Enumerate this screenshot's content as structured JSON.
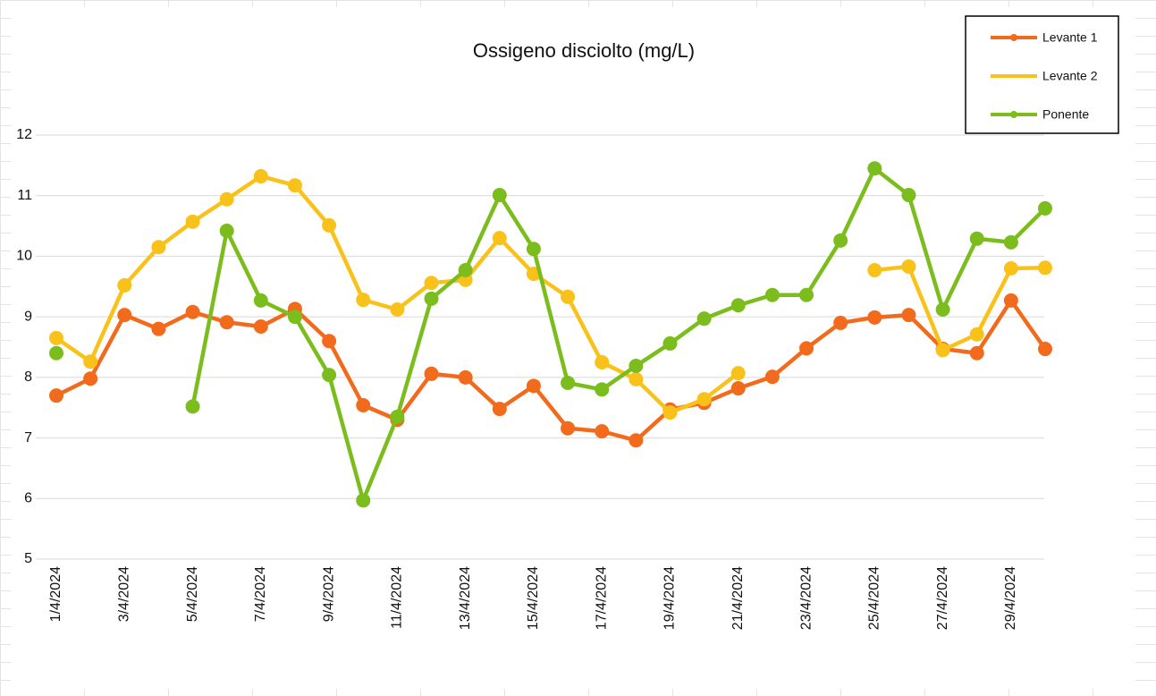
{
  "chart_data": {
    "type": "line",
    "title": "Ossigeno disciolto (mg/L)",
    "categories": [
      "1/4/2024",
      null,
      "3/4/2024",
      null,
      "5/4/2024",
      null,
      "7/4/2024",
      null,
      "9/4/2024",
      null,
      "11/4/2024",
      null,
      "13/4/2024",
      null,
      "15/4/2024",
      null,
      "17/4/2024",
      null,
      "19/4/2024",
      null,
      "21/4/2024",
      null,
      "23/4/2024",
      null,
      "25/4/2024",
      null,
      "27/4/2024",
      null,
      "29/4/2024",
      null
    ],
    "series": [
      {
        "name": "Levante 1",
        "color": "#f26b1d",
        "values": [
          7.7,
          7.98,
          9.03,
          8.8,
          9.08,
          8.91,
          8.84,
          9.13,
          8.6,
          7.54,
          7.3,
          8.06,
          8.0,
          7.48,
          7.86,
          7.16,
          7.11,
          6.96,
          7.47,
          7.58,
          7.82,
          8.01,
          8.48,
          8.9,
          8.99,
          9.03,
          8.47,
          8.4,
          9.27,
          8.47
        ]
      },
      {
        "name": "Levante 2",
        "color": "#f9c21b",
        "values": [
          8.65,
          8.26,
          9.52,
          10.15,
          10.57,
          10.94,
          11.32,
          11.17,
          10.51,
          9.28,
          9.12,
          9.56,
          9.61,
          10.3,
          9.71,
          9.33,
          8.25,
          7.97,
          7.42,
          7.64,
          8.07,
          null,
          null,
          null,
          9.77,
          9.83,
          8.45,
          8.71,
          9.8,
          9.81
        ]
      },
      {
        "name": "Ponente",
        "color": "#7cbd1e",
        "values": [
          8.4,
          null,
          null,
          null,
          7.52,
          10.42,
          9.27,
          9.0,
          8.04,
          5.97,
          7.35,
          9.3,
          9.77,
          11.01,
          10.12,
          7.91,
          7.8,
          8.19,
          8.56,
          8.97,
          9.19,
          9.36,
          9.36,
          10.26,
          11.45,
          11.01,
          9.12,
          10.29,
          10.23,
          10.79
        ]
      }
    ],
    "ylim": [
      5,
      12
    ],
    "yticks": [
      5,
      6,
      7,
      8,
      9,
      10,
      11,
      12
    ],
    "grid": true,
    "legend": "top-right"
  }
}
